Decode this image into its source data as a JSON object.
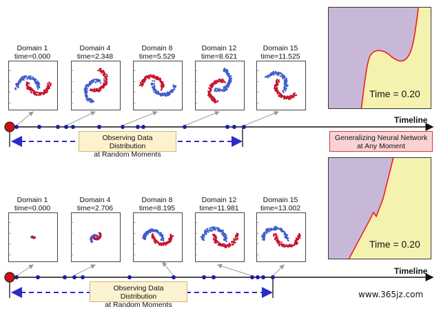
{
  "top_row": {
    "panels": [
      {
        "name": "Domain 1",
        "time": "time=0.000",
        "rot": 0,
        "scale": 1.0
      },
      {
        "name": "Domain 4",
        "time": "time=2.348",
        "rot": 70,
        "scale": 1.0
      },
      {
        "name": "Domain 8",
        "time": "time=5.529",
        "rot": 170,
        "scale": 1.0
      },
      {
        "name": "Domain 12",
        "time": "time=8.621",
        "rot": 250,
        "scale": 1.0
      },
      {
        "name": "Domain 15",
        "time": "time=11.525",
        "rot": 320,
        "scale": 1.0
      }
    ],
    "time_label": "Time = 0.20",
    "timeline_label": "Timeline",
    "observing_label_line1": "Observing Data Distribution",
    "observing_label_line2": "at Random Moments",
    "generalizing_label_line1": "Generalizing Neural Network",
    "generalizing_label_line2": "at Any Moment"
  },
  "bottom_row": {
    "panels": [
      {
        "name": "Domain 1",
        "time": "time=0.000",
        "rot": 0,
        "scale": 0.12
      },
      {
        "name": "Domain 4",
        "time": "time=2.706",
        "rot": 40,
        "scale": 0.35
      },
      {
        "name": "Domain 8",
        "time": "time=8.195",
        "rot": 0,
        "scale": 0.85
      },
      {
        "name": "Domain 12",
        "time": "time=11.981",
        "rot": 0,
        "scale": 1.05
      },
      {
        "name": "Domain 15",
        "time": "time=13.002",
        "rot": 0,
        "scale": 1.1
      }
    ],
    "time_label": "Time = 0.20",
    "timeline_label": "Timeline",
    "observing_label_line1": "Observing Data Distribution",
    "observing_label_line2": "at Random Moments"
  },
  "watermark": "www.365jz.com",
  "colors": {
    "blue": "#3e5ecb",
    "red": "#c4122e",
    "purple_region": "#c8b8d8",
    "yellow_region": "#f5f2b0",
    "boundary": "#f01818",
    "timeline_dot": "#1a1f9e",
    "start_dot": "#d01010",
    "dashed": "#2a2acc"
  }
}
